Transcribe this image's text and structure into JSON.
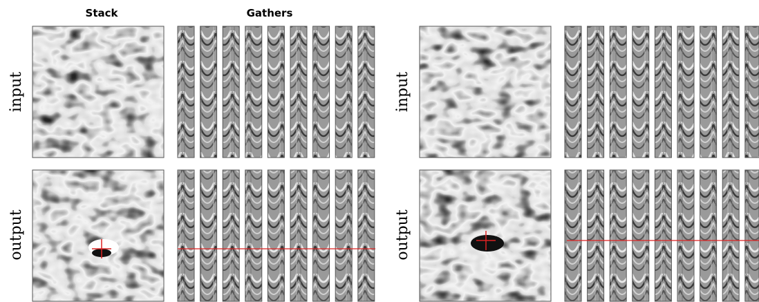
{
  "column_headers": [
    "Stack",
    "Gathers"
  ],
  "panels": [
    {
      "rows": [
        "input",
        "output"
      ]
    },
    {
      "rows": [
        "input",
        "output"
      ]
    }
  ]
}
